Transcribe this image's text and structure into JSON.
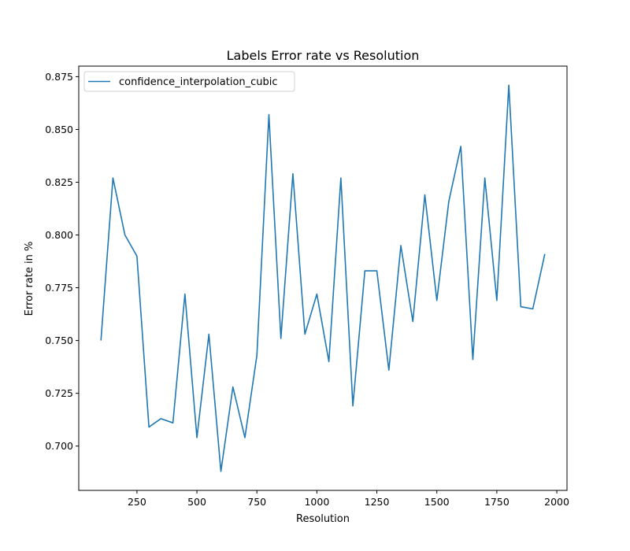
{
  "chart_data": {
    "type": "line",
    "title": "Labels Error rate vs Resolution",
    "xlabel": "Resolution",
    "ylabel": "Error rate in %",
    "xlim": [
      7.5,
      2042.5
    ],
    "ylim": [
      0.679,
      0.88
    ],
    "xticks": [
      250,
      500,
      750,
      1000,
      1250,
      1500,
      1750,
      2000
    ],
    "xtick_labels": [
      "250",
      "500",
      "750",
      "1000",
      "1250",
      "1500",
      "1750",
      "2000"
    ],
    "yticks": [
      0.7,
      0.725,
      0.75,
      0.775,
      0.8,
      0.825,
      0.85,
      0.875
    ],
    "ytick_labels": [
      "0.700",
      "0.725",
      "0.750",
      "0.775",
      "0.800",
      "0.825",
      "0.850",
      "0.875"
    ],
    "grid": false,
    "legend_position": "top-left",
    "series": [
      {
        "name": "confidence_interpolation_cubic",
        "color": "#1f77b4",
        "x": [
          100,
          150,
          200,
          250,
          300,
          350,
          400,
          450,
          500,
          550,
          600,
          650,
          700,
          750,
          800,
          850,
          900,
          950,
          1000,
          1050,
          1100,
          1150,
          1200,
          1250,
          1300,
          1350,
          1400,
          1450,
          1500,
          1550,
          1600,
          1650,
          1700,
          1750,
          1800,
          1850,
          1900,
          1950
        ],
        "y": [
          0.75,
          0.827,
          0.8,
          0.79,
          0.709,
          0.713,
          0.711,
          0.772,
          0.704,
          0.753,
          0.688,
          0.728,
          0.704,
          0.743,
          0.857,
          0.751,
          0.829,
          0.753,
          0.772,
          0.74,
          0.827,
          0.719,
          0.783,
          0.783,
          0.736,
          0.795,
          0.759,
          0.819,
          0.769,
          0.816,
          0.842,
          0.741,
          0.827,
          0.769,
          0.871,
          0.766,
          0.765,
          0.791
        ]
      }
    ]
  }
}
